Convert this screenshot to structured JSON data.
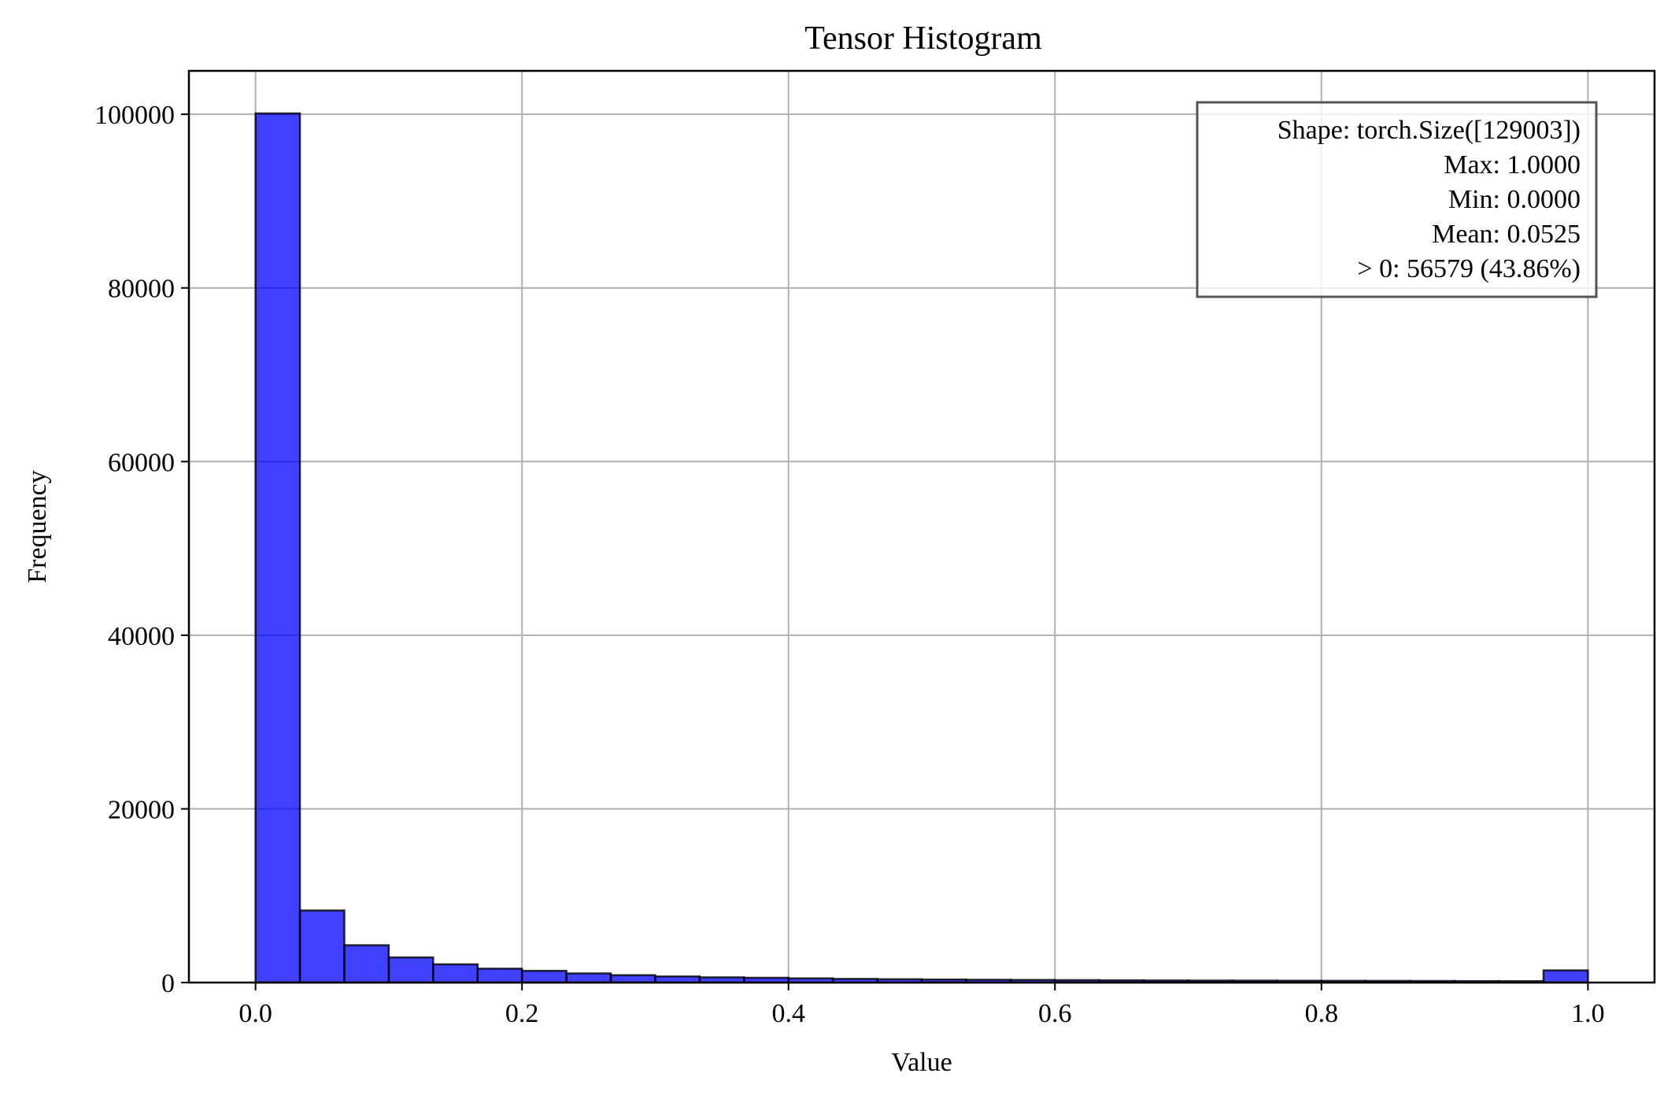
{
  "chart_data": {
    "type": "bar",
    "title": "Tensor Histogram",
    "xlabel": "Value",
    "ylabel": "Frequency",
    "xlim": [
      -0.05,
      1.05
    ],
    "ylim": [
      0,
      105000
    ],
    "x_ticks": [
      "0.0",
      "0.2",
      "0.4",
      "0.6",
      "0.8",
      "1.0"
    ],
    "x_tick_values": [
      0.0,
      0.2,
      0.4,
      0.6,
      0.8,
      1.0
    ],
    "y_ticks": [
      "0",
      "20000",
      "40000",
      "60000",
      "80000",
      "100000"
    ],
    "y_tick_values": [
      0,
      20000,
      40000,
      60000,
      80000,
      100000
    ],
    "grid": true,
    "bin_range": [
      0.0,
      1.0
    ],
    "num_bins": 30,
    "values": [
      100100,
      8300,
      4300,
      2900,
      2100,
      1600,
      1350,
      1050,
      850,
      700,
      600,
      550,
      480,
      420,
      380,
      350,
      320,
      300,
      280,
      260,
      240,
      230,
      220,
      210,
      200,
      190,
      180,
      170,
      160,
      1400
    ],
    "bar_color": "#0000ff",
    "bar_edge_color": "#000000",
    "stats_box": [
      "Shape: torch.Size([129003])",
      "Max: 1.0000",
      "Min: 0.0000",
      "Mean: 0.0525",
      "> 0: 56579 (43.86%)"
    ]
  }
}
